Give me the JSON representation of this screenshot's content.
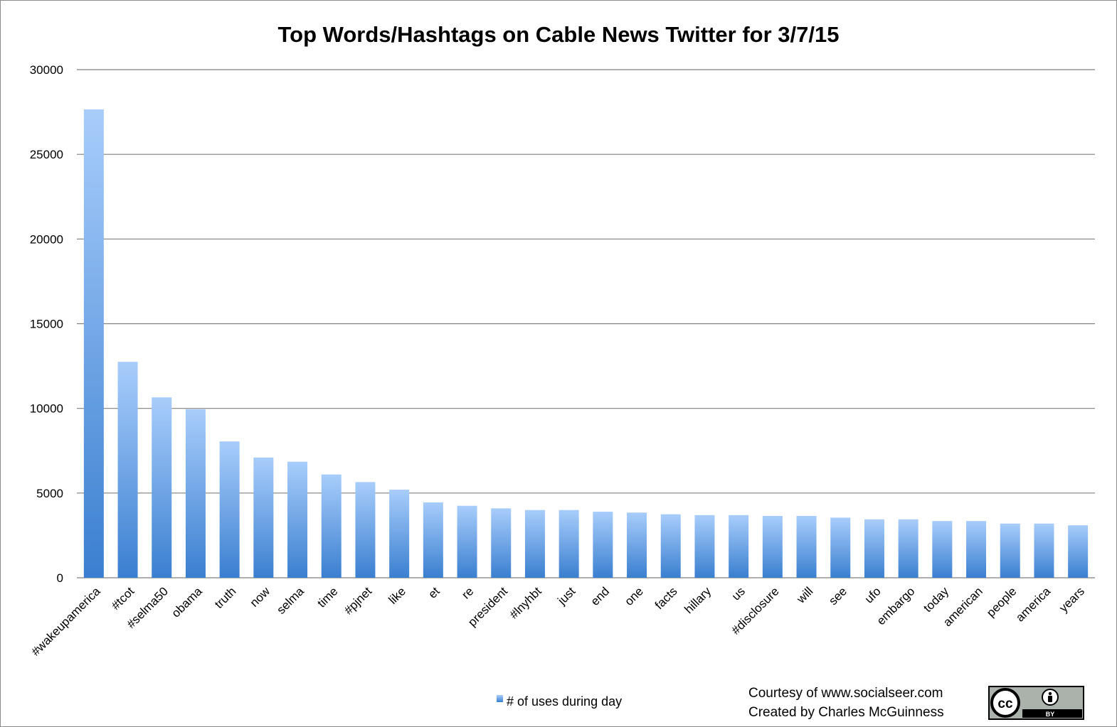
{
  "chart_data": {
    "type": "bar",
    "title": "Top Words/Hashtags on Cable News Twitter for 3/7/15",
    "xlabel": "",
    "ylabel": "",
    "ylim": [
      0,
      30000
    ],
    "yticks": [
      "30000",
      "25000",
      "20000",
      "15000",
      "10000",
      "5000",
      "0"
    ],
    "grid": true,
    "legend_position": "bottom",
    "categories": [
      "#wakeupamerica",
      "#tcot",
      "#selma50",
      "obama",
      "truth",
      "now",
      "selma",
      "time",
      "#pjnet",
      "like",
      "et",
      "re",
      "president",
      "#lnyhbt",
      "just",
      "end",
      "one",
      "facts",
      "hillary",
      "us",
      "#disclosure",
      "will",
      "see",
      "ufo",
      "embargo",
      "today",
      "american",
      "people",
      "america",
      "years"
    ],
    "series": [
      {
        "name": "# of uses during day",
        "color_top": "#a8cdfb",
        "color_bottom": "#3a7fd0",
        "values": [
          27650,
          12750,
          10650,
          9950,
          8050,
          7100,
          6850,
          6100,
          5650,
          5200,
          4450,
          4250,
          4100,
          4000,
          4000,
          3900,
          3850,
          3750,
          3700,
          3700,
          3650,
          3650,
          3550,
          3450,
          3450,
          3350,
          3350,
          3200,
          3200,
          3100
        ]
      }
    ]
  },
  "credits": {
    "line1": "Courtesy of www.socialseer.com",
    "line2": "Created by Charles McGuinness"
  },
  "license_badge": {
    "icon": "cc-by-icon",
    "cc_text": "cc",
    "by_text": "BY"
  }
}
